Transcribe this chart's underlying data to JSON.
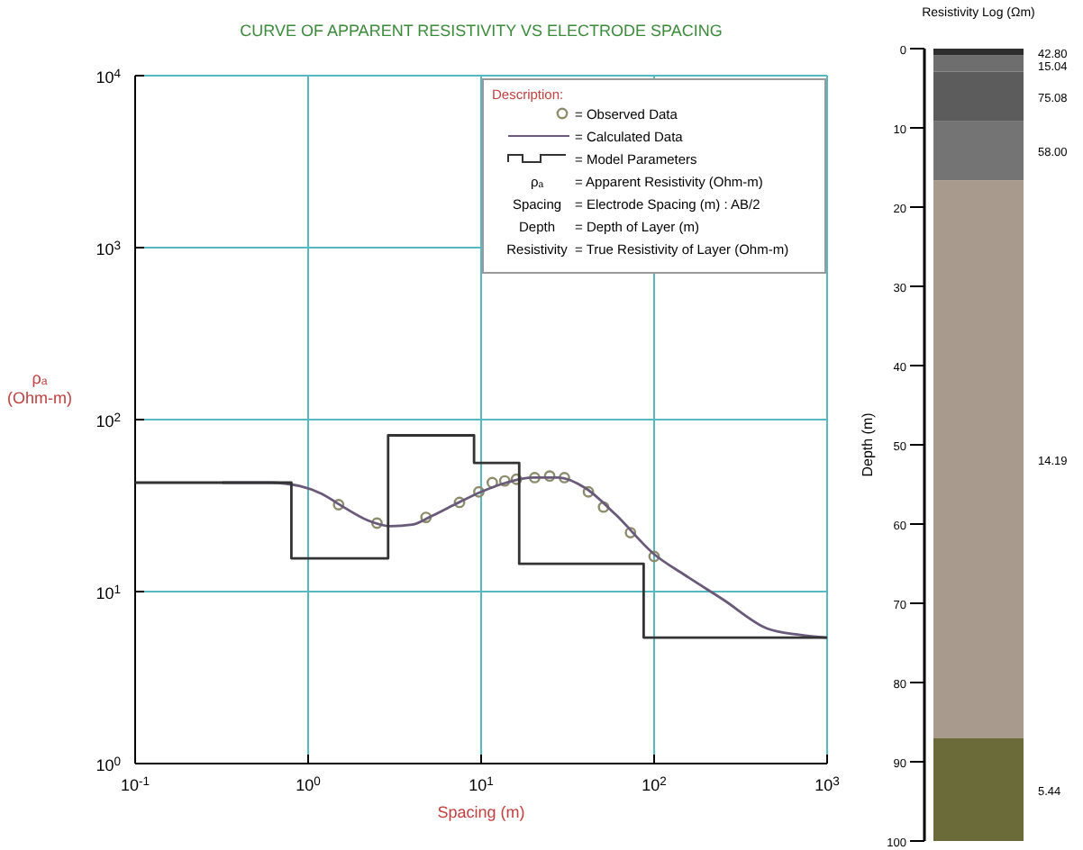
{
  "chart_data": [
    {
      "type": "line",
      "title": "CURVE OF APPARENT RESISTIVITY VS ELECTRODE SPACING",
      "xlabel": "Spacing (m)",
      "ylabel": "ρₐ\n(Ohm-m)",
      "log": "xy",
      "xlim": [
        0.1,
        1000
      ],
      "ylim": [
        1,
        10000
      ],
      "xticks": [
        {
          "value": 0.1,
          "label": "10$^{-1}$"
        },
        {
          "value": 1,
          "label": "10$^{0}$"
        },
        {
          "value": 10,
          "label": "10$^{1}$"
        },
        {
          "value": 100,
          "label": "10$^{2}$"
        },
        {
          "value": 1000,
          "label": "10$^{3}$"
        }
      ],
      "yticks": [
        {
          "value": 1,
          "label": "10$^{0}$"
        },
        {
          "value": 10,
          "label": "10$^{1}$"
        },
        {
          "value": 100,
          "label": "10$^{2}$"
        },
        {
          "value": 1000,
          "label": "10$^{3}$"
        },
        {
          "value": 10000,
          "label": "10$^{4}$"
        }
      ],
      "grid": true,
      "legend": "top right",
      "legend_title": "Description:",
      "series": [
        {
          "name": "= Observed Data",
          "type": "scatter",
          "marker": "circle",
          "color": "#8c8c6c",
          "x": [
            1.5,
            2.5,
            4.8,
            7.5,
            9.7,
            11.6,
            13.7,
            16,
            20.4,
            24.9,
            30.3,
            41.7,
            51,
            73,
            100
          ],
          "values": [
            32,
            25,
            27,
            33,
            38,
            43,
            44,
            45,
            46,
            47,
            46,
            38,
            31,
            22,
            16
          ]
        },
        {
          "name": "= Calculated Data",
          "type": "line",
          "color": "#6a5a7a",
          "x": [
            0.32,
            0.6,
            0.9,
            1.2,
            1.6,
            2.2,
            3,
            4,
            5,
            7,
            10,
            14,
            20,
            28,
            40,
            60,
            100,
            150,
            250,
            450,
            700,
            1000
          ],
          "values": [
            43,
            43,
            41,
            37,
            31,
            26,
            24,
            24.5,
            27,
            32,
            38,
            43,
            46,
            46,
            40,
            28,
            16.5,
            12.5,
            9,
            6.1,
            5.6,
            5.4
          ]
        },
        {
          "name": "= Model Parameters",
          "type": "step",
          "color": "#333333",
          "x": [
            0.1,
            0.8,
            2.9,
            9.1,
            16.6,
            87,
            1000
          ],
          "values": [
            43,
            15.6,
            81,
            56,
            14.5,
            5.4,
            5.4
          ]
        }
      ],
      "annotations": [
        "ρₐ = Apparent Resistivity (Ohm-m)",
        "Spacing = Electrode Spacing (m) : AB/2",
        "Depth = Depth of Layer (m)",
        "Resistivity = True Resistivity of Layer (Ohm-m)"
      ]
    },
    {
      "type": "bar",
      "stacked": true,
      "title": "Resistivity Log (Ωm)",
      "ylabel": "Depth (m)",
      "categories": [
        null
      ],
      "ylim": [
        100,
        0
      ],
      "yticks": [
        0,
        10,
        20,
        30,
        40,
        50,
        60,
        70,
        80,
        90,
        100
      ],
      "series": [
        {
          "color": "#2e2e2e",
          "values": [
            0.8
          ]
        },
        {
          "color": "#6e6e6e",
          "values": [
            2.1
          ]
        },
        {
          "color": "#5c5c5c",
          "values": [
            6.2
          ]
        },
        {
          "color": "#747474",
          "values": [
            7.5
          ]
        },
        {
          "color": "#a89a8c",
          "values": [
            70.4
          ]
        },
        {
          "color": "#6b6b3a",
          "values": [
            13
          ]
        }
      ],
      "annotations": [
        "42.80",
        "15.04",
        "75.08",
        "58.00",
        "14.19",
        "5.44"
      ]
    }
  ]
}
